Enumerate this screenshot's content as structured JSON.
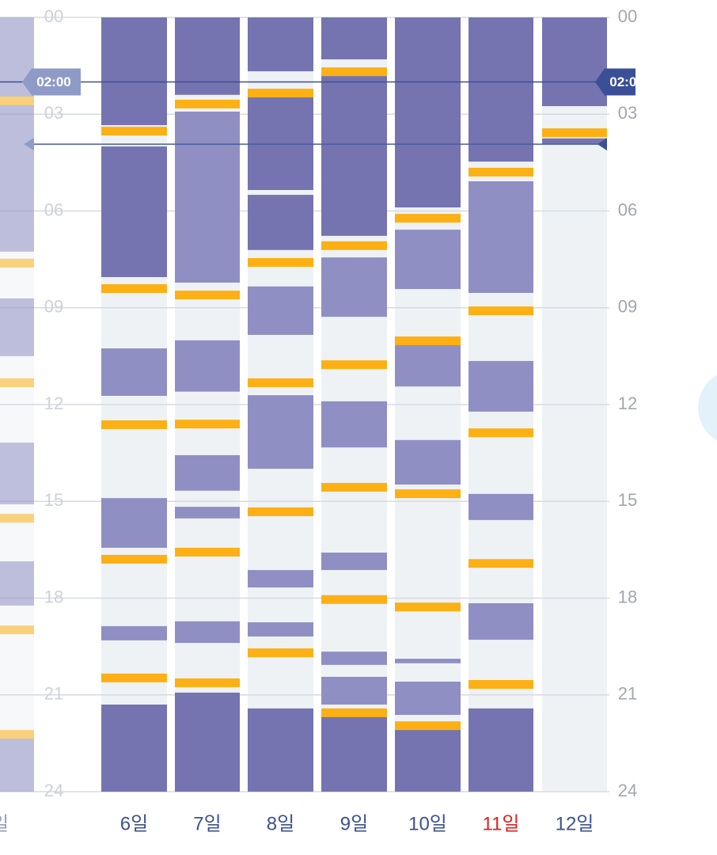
{
  "axis": {
    "range": [
      0,
      24
    ],
    "ticks": [
      {
        "value": 0,
        "label": "00"
      },
      {
        "value": 3,
        "label": "03"
      },
      {
        "value": 6,
        "label": "06"
      },
      {
        "value": 9,
        "label": "09"
      },
      {
        "value": 12,
        "label": "12"
      },
      {
        "value": 15,
        "label": "15"
      },
      {
        "value": 18,
        "label": "18"
      },
      {
        "value": 21,
        "label": "21"
      },
      {
        "value": 24,
        "label": "24"
      }
    ]
  },
  "selected_time": {
    "value": 2,
    "label": "02:00"
  },
  "now_line": 3.93,
  "colors": {
    "deep": "#7574b0",
    "light": "#8f8fc4",
    "feed": "#fcb014",
    "background": "#eef2f5",
    "day": "#3b5193"
  },
  "days": [
    {
      "label": "일",
      "faded": true,
      "sleep": [
        {
          "start": 0,
          "end": 7.26,
          "depth": "light"
        },
        {
          "start": 8.71,
          "end": 10.5,
          "depth": "light"
        },
        {
          "start": 13.18,
          "end": 15.09,
          "depth": "light"
        },
        {
          "start": 16.86,
          "end": 18.23,
          "depth": "light"
        },
        {
          "start": 22.28,
          "end": 24,
          "depth": "light"
        }
      ],
      "feeds": [
        2.45,
        7.48,
        11.19,
        15.39,
        18.85,
        22.09
      ]
    },
    {
      "label": "6일",
      "sleep": [
        {
          "start": 0,
          "end": 3.34,
          "depth": "deep"
        },
        {
          "start": 4.0,
          "end": 8.05,
          "depth": "deep"
        },
        {
          "start": 10.26,
          "end": 11.73,
          "depth": "light"
        },
        {
          "start": 14.9,
          "end": 16.44,
          "depth": "light"
        },
        {
          "start": 18.87,
          "end": 19.31,
          "depth": "light"
        },
        {
          "start": 21.3,
          "end": 24,
          "depth": "deep"
        }
      ],
      "feeds": [
        3.39,
        8.27,
        12.49,
        16.66,
        20.34
      ]
    },
    {
      "label": "7일",
      "sleep": [
        {
          "start": 0,
          "end": 2.4,
          "depth": "deep"
        },
        {
          "start": 2.92,
          "end": 8.22,
          "depth": "light"
        },
        {
          "start": 10.01,
          "end": 11.6,
          "depth": "light"
        },
        {
          "start": 13.57,
          "end": 14.67,
          "depth": "light"
        },
        {
          "start": 15.17,
          "end": 15.53,
          "depth": "light"
        },
        {
          "start": 18.72,
          "end": 19.39,
          "depth": "light"
        },
        {
          "start": 20.93,
          "end": 24,
          "depth": "deep"
        }
      ],
      "feeds": [
        2.55,
        8.47,
        12.47,
        16.44,
        20.49
      ]
    },
    {
      "label": "8일",
      "sleep": [
        {
          "start": 0,
          "end": 1.67,
          "depth": "deep"
        },
        {
          "start": 2.43,
          "end": 5.35,
          "depth": "deep"
        },
        {
          "start": 5.5,
          "end": 7.21,
          "depth": "deep"
        },
        {
          "start": 8.34,
          "end": 9.84,
          "depth": "light"
        },
        {
          "start": 11.71,
          "end": 13.99,
          "depth": "light"
        },
        {
          "start": 17.13,
          "end": 17.67,
          "depth": "light"
        },
        {
          "start": 18.75,
          "end": 19.19,
          "depth": "light"
        },
        {
          "start": 21.42,
          "end": 24,
          "depth": "deep"
        }
      ],
      "feeds": [
        2.21,
        7.46,
        11.19,
        15.19,
        19.56
      ]
    },
    {
      "label": "9일",
      "sleep": [
        {
          "start": 0,
          "end": 1.3,
          "depth": "deep"
        },
        {
          "start": 1.69,
          "end": 6.77,
          "depth": "deep"
        },
        {
          "start": 7.44,
          "end": 9.28,
          "depth": "light"
        },
        {
          "start": 11.9,
          "end": 13.33,
          "depth": "light"
        },
        {
          "start": 16.59,
          "end": 17.13,
          "depth": "light"
        },
        {
          "start": 19.66,
          "end": 20.07,
          "depth": "light"
        },
        {
          "start": 20.44,
          "end": 21.3,
          "depth": "light"
        },
        {
          "start": 21.67,
          "end": 24,
          "depth": "deep"
        }
      ],
      "feeds": [
        1.55,
        6.94,
        10.63,
        14.43,
        17.91,
        21.42
      ]
    },
    {
      "label": "10일",
      "sleep": [
        {
          "start": 0,
          "end": 5.89,
          "depth": "deep"
        },
        {
          "start": 6.58,
          "end": 8.42,
          "depth": "light"
        },
        {
          "start": 10.09,
          "end": 11.44,
          "depth": "light"
        },
        {
          "start": 13.1,
          "end": 14.48,
          "depth": "light"
        },
        {
          "start": 19.88,
          "end": 20.02,
          "depth": "light"
        },
        {
          "start": 20.59,
          "end": 21.62,
          "depth": "light"
        },
        {
          "start": 21.99,
          "end": 24,
          "depth": "deep"
        }
      ],
      "feeds": [
        6.09,
        9.89,
        14.63,
        18.14,
        21.82
      ]
    },
    {
      "label": "11일",
      "color": "#e0201f",
      "sleep": [
        {
          "start": 0,
          "end": 4.47,
          "depth": "deep"
        },
        {
          "start": 5.08,
          "end": 8.54,
          "depth": "light"
        },
        {
          "start": 10.65,
          "end": 12.22,
          "depth": "light"
        },
        {
          "start": 14.77,
          "end": 15.58,
          "depth": "light"
        },
        {
          "start": 18.16,
          "end": 19.29,
          "depth": "light"
        },
        {
          "start": 21.42,
          "end": 24,
          "depth": "deep"
        }
      ],
      "feeds": [
        4.66,
        8.96,
        12.74,
        16.79,
        20.54
      ]
    },
    {
      "label": "12일",
      "sleep": [
        {
          "start": 0,
          "end": 2.75,
          "depth": "deep"
        },
        {
          "start": 3.75,
          "end": 3.93,
          "depth": "deep"
        }
      ],
      "feeds": [
        3.44
      ]
    }
  ]
}
